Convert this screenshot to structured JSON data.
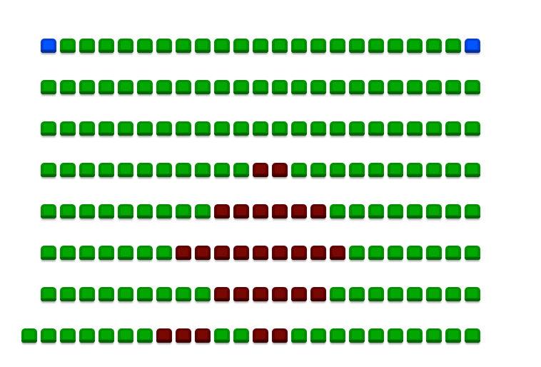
{
  "colors": {
    "available": {
      "base": "#009000",
      "inner": "#00a800",
      "dark": "#006800"
    },
    "selected": {
      "base": "#0040e0",
      "inner": "#0055ff",
      "dark": "#0030a0"
    },
    "occupied": {
      "base": "#600000",
      "inner": "#780800",
      "dark": "#400000"
    }
  },
  "rows": [
    {
      "offset": 1,
      "seats": [
        "selected",
        "available",
        "available",
        "available",
        "available",
        "available",
        "available",
        "available",
        "available",
        "available",
        "available",
        "available",
        "available",
        "available",
        "available",
        "available",
        "available",
        "available",
        "available",
        "available",
        "available",
        "available",
        "selected"
      ]
    },
    {
      "offset": 1,
      "seats": [
        "available",
        "available",
        "available",
        "available",
        "available",
        "available",
        "available",
        "available",
        "available",
        "available",
        "available",
        "available",
        "available",
        "available",
        "available",
        "available",
        "available",
        "available",
        "available",
        "available",
        "available",
        "available",
        "available"
      ]
    },
    {
      "offset": 1,
      "seats": [
        "available",
        "available",
        "available",
        "available",
        "available",
        "available",
        "available",
        "available",
        "available",
        "available",
        "available",
        "available",
        "available",
        "available",
        "available",
        "available",
        "available",
        "available",
        "available",
        "available",
        "available",
        "available",
        "available"
      ]
    },
    {
      "offset": 1,
      "seats": [
        "available",
        "available",
        "available",
        "available",
        "available",
        "available",
        "available",
        "available",
        "available",
        "available",
        "available",
        "occupied",
        "occupied",
        "available",
        "available",
        "available",
        "available",
        "available",
        "available",
        "available",
        "available",
        "available",
        "available"
      ]
    },
    {
      "offset": 1,
      "seats": [
        "available",
        "available",
        "available",
        "available",
        "available",
        "available",
        "available",
        "available",
        "available",
        "occupied",
        "occupied",
        "occupied",
        "occupied",
        "occupied",
        "occupied",
        "available",
        "available",
        "available",
        "available",
        "available",
        "available",
        "available",
        "available"
      ]
    },
    {
      "offset": 1,
      "seats": [
        "available",
        "available",
        "available",
        "available",
        "available",
        "available",
        "available",
        "occupied",
        "occupied",
        "occupied",
        "occupied",
        "occupied",
        "occupied",
        "occupied",
        "occupied",
        "occupied",
        "available",
        "available",
        "available",
        "available",
        "available",
        "available",
        "available"
      ]
    },
    {
      "offset": 1,
      "seats": [
        "available",
        "available",
        "available",
        "available",
        "available",
        "available",
        "available",
        "available",
        "available",
        "occupied",
        "occupied",
        "occupied",
        "occupied",
        "occupied",
        "occupied",
        "available",
        "available",
        "available",
        "available",
        "available",
        "available",
        "available",
        "available"
      ]
    },
    {
      "offset": 0,
      "seats": [
        "available",
        "available",
        "available",
        "available",
        "available",
        "available",
        "available",
        "occupied",
        "occupied",
        "occupied",
        "available",
        "available",
        "occupied",
        "occupied",
        "available",
        "available",
        "available",
        "available",
        "available",
        "available",
        "available",
        "available",
        "available",
        "available"
      ]
    }
  ]
}
